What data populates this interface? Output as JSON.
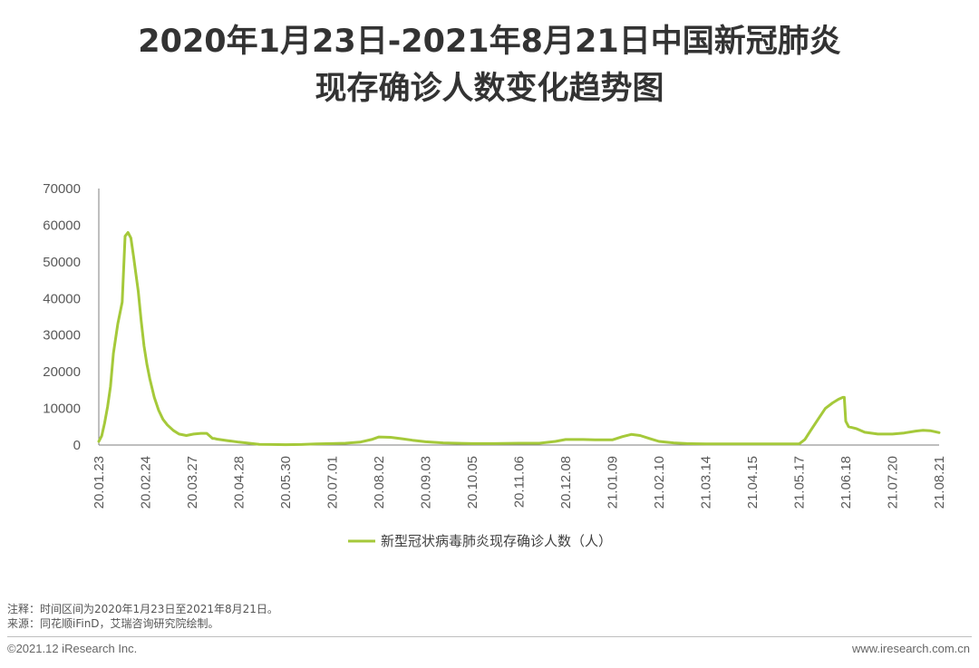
{
  "title": {
    "line1": "2020年1月23日-2021年8月21日中国新冠肺炎",
    "line2": "现存确诊人数变化趋势图"
  },
  "colors": {
    "series": "#a5c93a",
    "axis": "#7f7f7f",
    "text": "#595959"
  },
  "chart_data": {
    "type": "line",
    "title": "2020年1月23日-2021年8月21日中国新冠肺炎现存确诊人数变化趋势图",
    "xlabel": "",
    "ylabel": "",
    "ylim": [
      0,
      70000
    ],
    "yticks": [
      0,
      10000,
      20000,
      30000,
      40000,
      50000,
      60000,
      70000
    ],
    "xticks": [
      "20.01.23",
      "20.02.24",
      "20.03.27",
      "20.04.28",
      "20.05.30",
      "20.07.01",
      "20.08.02",
      "20.09.03",
      "20.10.05",
      "20.11.06",
      "20.12.08",
      "21.01.09",
      "21.02.10",
      "21.03.14",
      "21.04.15",
      "21.05.17",
      "21.06.18",
      "21.07.20",
      "21.08.21"
    ],
    "grid": false,
    "legend": "bottom-center",
    "series": [
      {
        "name": "新型冠状病毒肺炎现存确诊人数（人）",
        "x": [
          "20.01.23",
          "20.01.25",
          "20.01.27",
          "20.01.29",
          "20.01.31",
          "20.02.02",
          "20.02.05",
          "20.02.08",
          "20.02.10",
          "20.02.12",
          "20.02.14",
          "20.02.16",
          "20.02.17",
          "20.02.19",
          "20.02.21",
          "20.02.23",
          "20.02.25",
          "20.02.27",
          "20.03.01",
          "20.03.04",
          "20.03.07",
          "20.03.10",
          "20.03.14",
          "20.03.18",
          "20.03.23",
          "20.03.28",
          "20.04.02",
          "20.04.06",
          "20.04.10",
          "20.04.11",
          "20.04.13",
          "20.04.20",
          "20.04.28",
          "20.05.05",
          "20.05.12",
          "20.05.20",
          "20.05.30",
          "20.06.10",
          "20.06.20",
          "20.07.01",
          "20.07.10",
          "20.07.20",
          "20.07.28",
          "20.08.02",
          "20.08.10",
          "20.08.18",
          "20.08.25",
          "20.09.03",
          "20.09.15",
          "20.10.05",
          "20.10.20",
          "20.11.06",
          "20.11.20",
          "20.12.01",
          "20.12.08",
          "20.12.20",
          "20.12.28",
          "21.01.09",
          "21.01.16",
          "21.01.22",
          "21.01.28",
          "21.02.04",
          "21.02.10",
          "21.02.20",
          "21.03.01",
          "21.03.14",
          "21.04.01",
          "21.04.15",
          "21.05.01",
          "21.05.17",
          "21.05.21",
          "21.05.25",
          "21.05.30",
          "21.06.04",
          "21.06.09",
          "21.06.13",
          "21.06.16",
          "21.06.17",
          "21.06.18",
          "21.06.20",
          "21.06.25",
          "21.07.01",
          "21.07.10",
          "21.07.20",
          "21.07.28",
          "21.08.05",
          "21.08.10",
          "21.08.15",
          "21.08.21"
        ],
        "values": [
          1000,
          2500,
          6000,
          10500,
          16000,
          25000,
          33000,
          39000,
          57000,
          58000,
          56500,
          51000,
          48000,
          42000,
          34000,
          27000,
          22000,
          18000,
          13000,
          9500,
          7000,
          5500,
          4000,
          3000,
          2600,
          3000,
          3200,
          3200,
          1800,
          1800,
          1600,
          1200,
          800,
          500,
          200,
          150,
          100,
          150,
          300,
          400,
          500,
          800,
          1500,
          2200,
          2100,
          1700,
          1300,
          900,
          600,
          400,
          400,
          500,
          500,
          1000,
          1500,
          1500,
          1400,
          1400,
          2300,
          2900,
          2600,
          1700,
          1000,
          600,
          400,
          300,
          300,
          300,
          300,
          300,
          1500,
          4000,
          7000,
          10000,
          11500,
          12500,
          13000,
          13000,
          6500,
          5000,
          4500,
          3500,
          3000,
          3000,
          3300,
          3800,
          4000,
          3900,
          3400
        ]
      }
    ]
  },
  "notes": {
    "note": "注释：时间区间为2020年1月23日至2021年8月21日。",
    "source": "来源：同花顺iFinD，艾瑞咨询研究院绘制。"
  },
  "footer": {
    "left": "©2021.12 iResearch Inc.",
    "right": "www.iresearch.com.cn"
  }
}
